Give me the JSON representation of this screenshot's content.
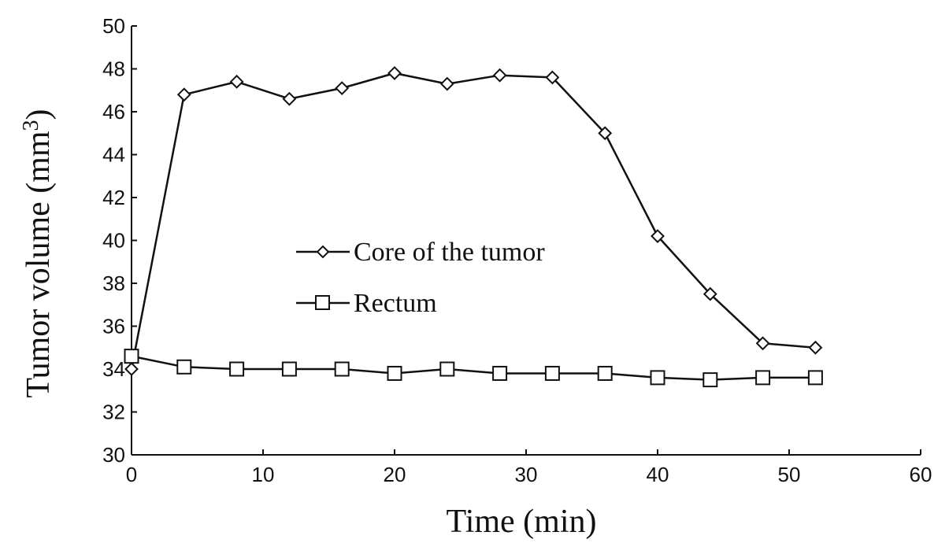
{
  "chart_data": {
    "type": "line",
    "xlabel": "Time (min)",
    "ylabel": "Tumor volume (mm",
    "ylabel_superscript": "3",
    "ylabel_suffix": ")",
    "xlim": [
      0,
      60
    ],
    "ylim": [
      30,
      50
    ],
    "xticks": [
      0,
      10,
      20,
      30,
      40,
      50,
      60
    ],
    "yticks": [
      30,
      32,
      34,
      36,
      38,
      40,
      42,
      44,
      46,
      48,
      50
    ],
    "grid": false,
    "legend_position": "center",
    "x": [
      0,
      4,
      8,
      12,
      16,
      20,
      24,
      28,
      32,
      36,
      40,
      44,
      48,
      52
    ],
    "series": [
      {
        "name": "Core of the tumor",
        "marker": "diamond",
        "color": "#111111",
        "values": [
          34.0,
          46.8,
          47.4,
          46.6,
          47.1,
          47.8,
          47.3,
          47.7,
          47.6,
          45.0,
          40.2,
          37.5,
          35.2,
          35.0
        ]
      },
      {
        "name": "Rectum",
        "marker": "square",
        "color": "#111111",
        "values": [
          34.6,
          34.1,
          34.0,
          34.0,
          34.0,
          33.8,
          34.0,
          33.8,
          33.8,
          33.8,
          33.6,
          33.5,
          33.6,
          33.6
        ]
      }
    ]
  }
}
